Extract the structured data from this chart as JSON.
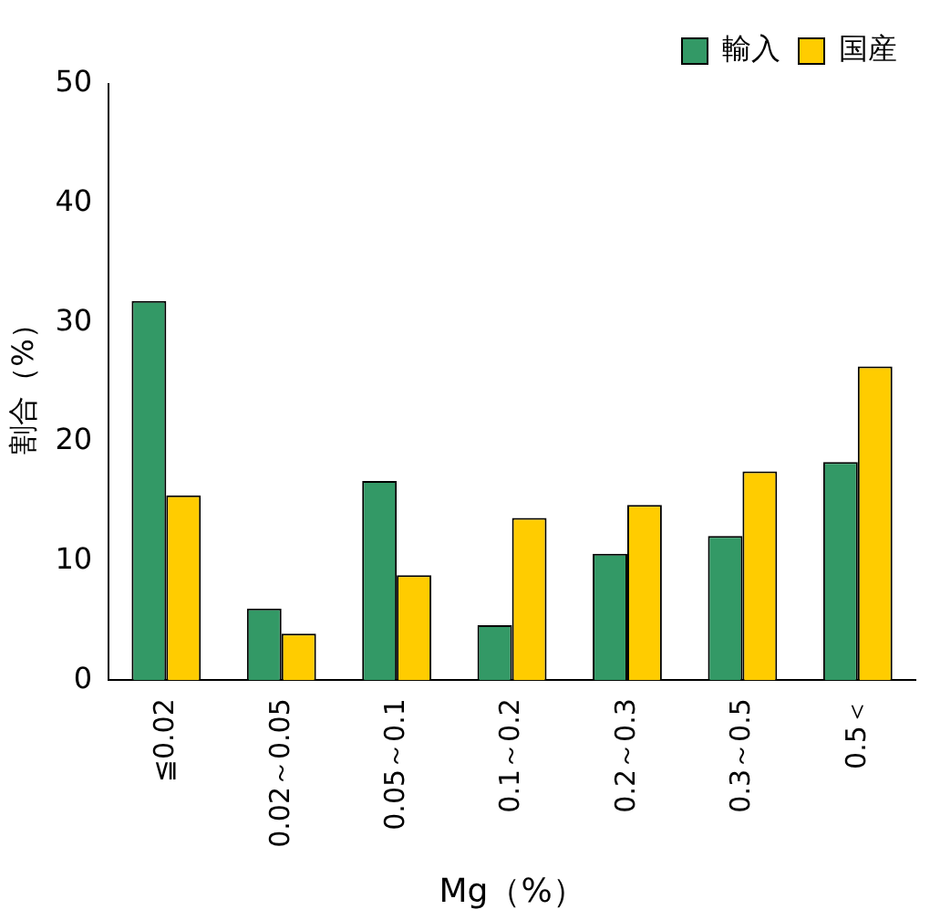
{
  "chart_data": {
    "type": "bar",
    "xlabel": "Mg（%）",
    "ylabel": "割合（%）",
    "categories": [
      "≦0.02",
      "0.02～0.05",
      "0.05～0.1",
      "0.1～0.2",
      "0.2～0.3",
      "0.3～0.5",
      "0.5＜"
    ],
    "series": [
      {
        "name": "輸入",
        "color": "#339966",
        "values": [
          31.8,
          6.0,
          16.7,
          4.6,
          10.6,
          12.1,
          18.3
        ]
      },
      {
        "name": "国産",
        "color": "#ffcc00",
        "values": [
          15.5,
          3.9,
          8.8,
          13.6,
          14.7,
          17.5,
          26.3
        ]
      }
    ],
    "ylim": [
      0,
      50
    ],
    "yticks": [
      0,
      10,
      20,
      30,
      40,
      50
    ],
    "grid": false,
    "legend": "top right"
  }
}
